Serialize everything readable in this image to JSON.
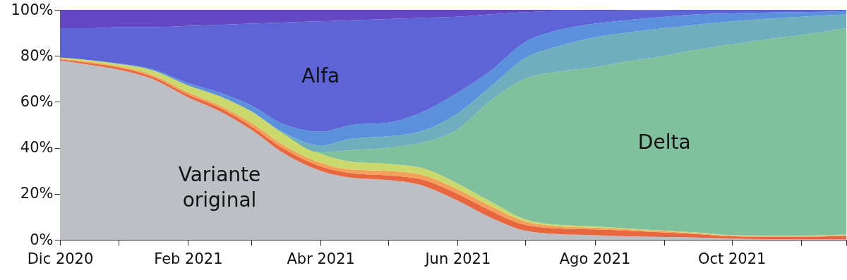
{
  "chart_data": {
    "type": "area",
    "stacked": true,
    "x": [
      "2020-12-06",
      "2020-12-20",
      "2021-01-01",
      "2021-01-16",
      "2021-02-01",
      "2021-02-15",
      "2021-03-01",
      "2021-03-15",
      "2021-04-01",
      "2021-04-15",
      "2021-05-01",
      "2021-05-15",
      "2021-06-01",
      "2021-06-15",
      "2021-07-01",
      "2021-07-15",
      "2021-08-01",
      "2021-08-15",
      "2021-09-01",
      "2021-09-15",
      "2021-10-01",
      "2021-10-15",
      "2021-11-01",
      "2021-11-21"
    ],
    "xlim": [
      "2020-12-06",
      "2021-11-21"
    ],
    "xticks": [
      {
        "value": "2020-12-06",
        "label": "Dic 2020"
      },
      {
        "value": "2021-01-01",
        "label": null
      },
      {
        "value": "2021-02-01",
        "label": "Feb 2021"
      },
      {
        "value": "2021-03-01",
        "label": null
      },
      {
        "value": "2021-04-01",
        "label": "Abr 2021"
      },
      {
        "value": "2021-05-01",
        "label": null
      },
      {
        "value": "2021-06-01",
        "label": "Jun 2021"
      },
      {
        "value": "2021-07-01",
        "label": null
      },
      {
        "value": "2021-08-01",
        "label": "Ago 2021"
      },
      {
        "value": "2021-09-01",
        "label": null
      },
      {
        "value": "2021-10-01",
        "label": "Oct 2021"
      },
      {
        "value": "2021-11-01",
        "label": null
      },
      {
        "value": "2021-11-21",
        "label": null
      }
    ],
    "ylim": [
      0,
      100
    ],
    "yticks": [
      {
        "value": 0,
        "label": "0%"
      },
      {
        "value": 20,
        "label": "20%"
      },
      {
        "value": 40,
        "label": "40%"
      },
      {
        "value": 60,
        "label": "60%"
      },
      {
        "value": 80,
        "label": "80%"
      },
      {
        "value": 100,
        "label": "100%"
      }
    ],
    "series": [
      {
        "name": "Variante original",
        "color": "#bcc0c4",
        "values": [
          78,
          76,
          74,
          70,
          62,
          56,
          48,
          38,
          30,
          27,
          26,
          24,
          17,
          10,
          4,
          2.5,
          2,
          1.5,
          1.2,
          1,
          0.5,
          0.3,
          0.3,
          0.3
        ]
      },
      {
        "color": "#e8673e",
        "values": [
          0.5,
          0.8,
          1,
          1,
          1.2,
          1.5,
          1.5,
          2,
          2,
          2,
          2,
          2.5,
          3,
          3,
          2.5,
          2.5,
          2.5,
          2.5,
          2,
          1.5,
          1,
          1,
          1,
          1.5
        ]
      },
      {
        "color": "#f5a05a",
        "values": [
          0.3,
          0.5,
          0.5,
          0.8,
          1,
          1,
          1.5,
          1.5,
          1.5,
          1.5,
          2,
          2,
          2,
          2,
          1.5,
          1,
          0.8,
          0.6,
          0.5,
          0.4,
          0.3,
          0.3,
          0.3,
          0.3
        ]
      },
      {
        "color": "#c9d96c",
        "values": [
          0.5,
          0.8,
          1,
          2,
          3,
          4,
          5,
          5,
          4,
          3.5,
          3,
          3,
          2.5,
          2,
          1,
          0.6,
          0.5,
          0.4,
          0.3,
          0.3,
          0.2,
          0.2,
          0.2,
          0.2
        ]
      },
      {
        "name": "Delta",
        "color": "#80c09c",
        "values": [
          0,
          0,
          0,
          0,
          0,
          0,
          0,
          0,
          0.5,
          5,
          7,
          10.5,
          23.5,
          43,
          61,
          66.4,
          69.2,
          72.5,
          76,
          79.3,
          83,
          85.2,
          87.2,
          89.7
        ]
      },
      {
        "color": "#6eaebd",
        "values": [
          0,
          0,
          0,
          0,
          0,
          0,
          0,
          0.5,
          3,
          5,
          5,
          5,
          7,
          6,
          9,
          11,
          13,
          12.5,
          12,
          11,
          10,
          9,
          8,
          6
        ]
      },
      {
        "color": "#5b90dc",
        "values": [
          0,
          0,
          0.2,
          0.5,
          1,
          1.5,
          2.5,
          3.5,
          6,
          6,
          6,
          8,
          9,
          7,
          7,
          7,
          6,
          5.5,
          5,
          4.5,
          3.5,
          2.8,
          2,
          1.5
        ]
      },
      {
        "name": "Alfa",
        "color": "#5c64d6",
        "values": [
          12.7,
          13.9,
          15.8,
          18.2,
          24.8,
          29.5,
          35.5,
          44,
          48,
          45.5,
          45,
          41.5,
          33,
          25,
          13,
          8.5,
          5.7,
          4.3,
          2.9,
          2,
          1.5,
          1.2,
          1,
          0.5
        ]
      },
      {
        "color": "#6447c2",
        "values": [
          8,
          8,
          7.5,
          7.5,
          7,
          6.5,
          6,
          5.5,
          5,
          4.5,
          4,
          3.5,
          3,
          2,
          1,
          0.5,
          0.3,
          0.2,
          0.1,
          0,
          0,
          0,
          0,
          0
        ]
      }
    ]
  }
}
